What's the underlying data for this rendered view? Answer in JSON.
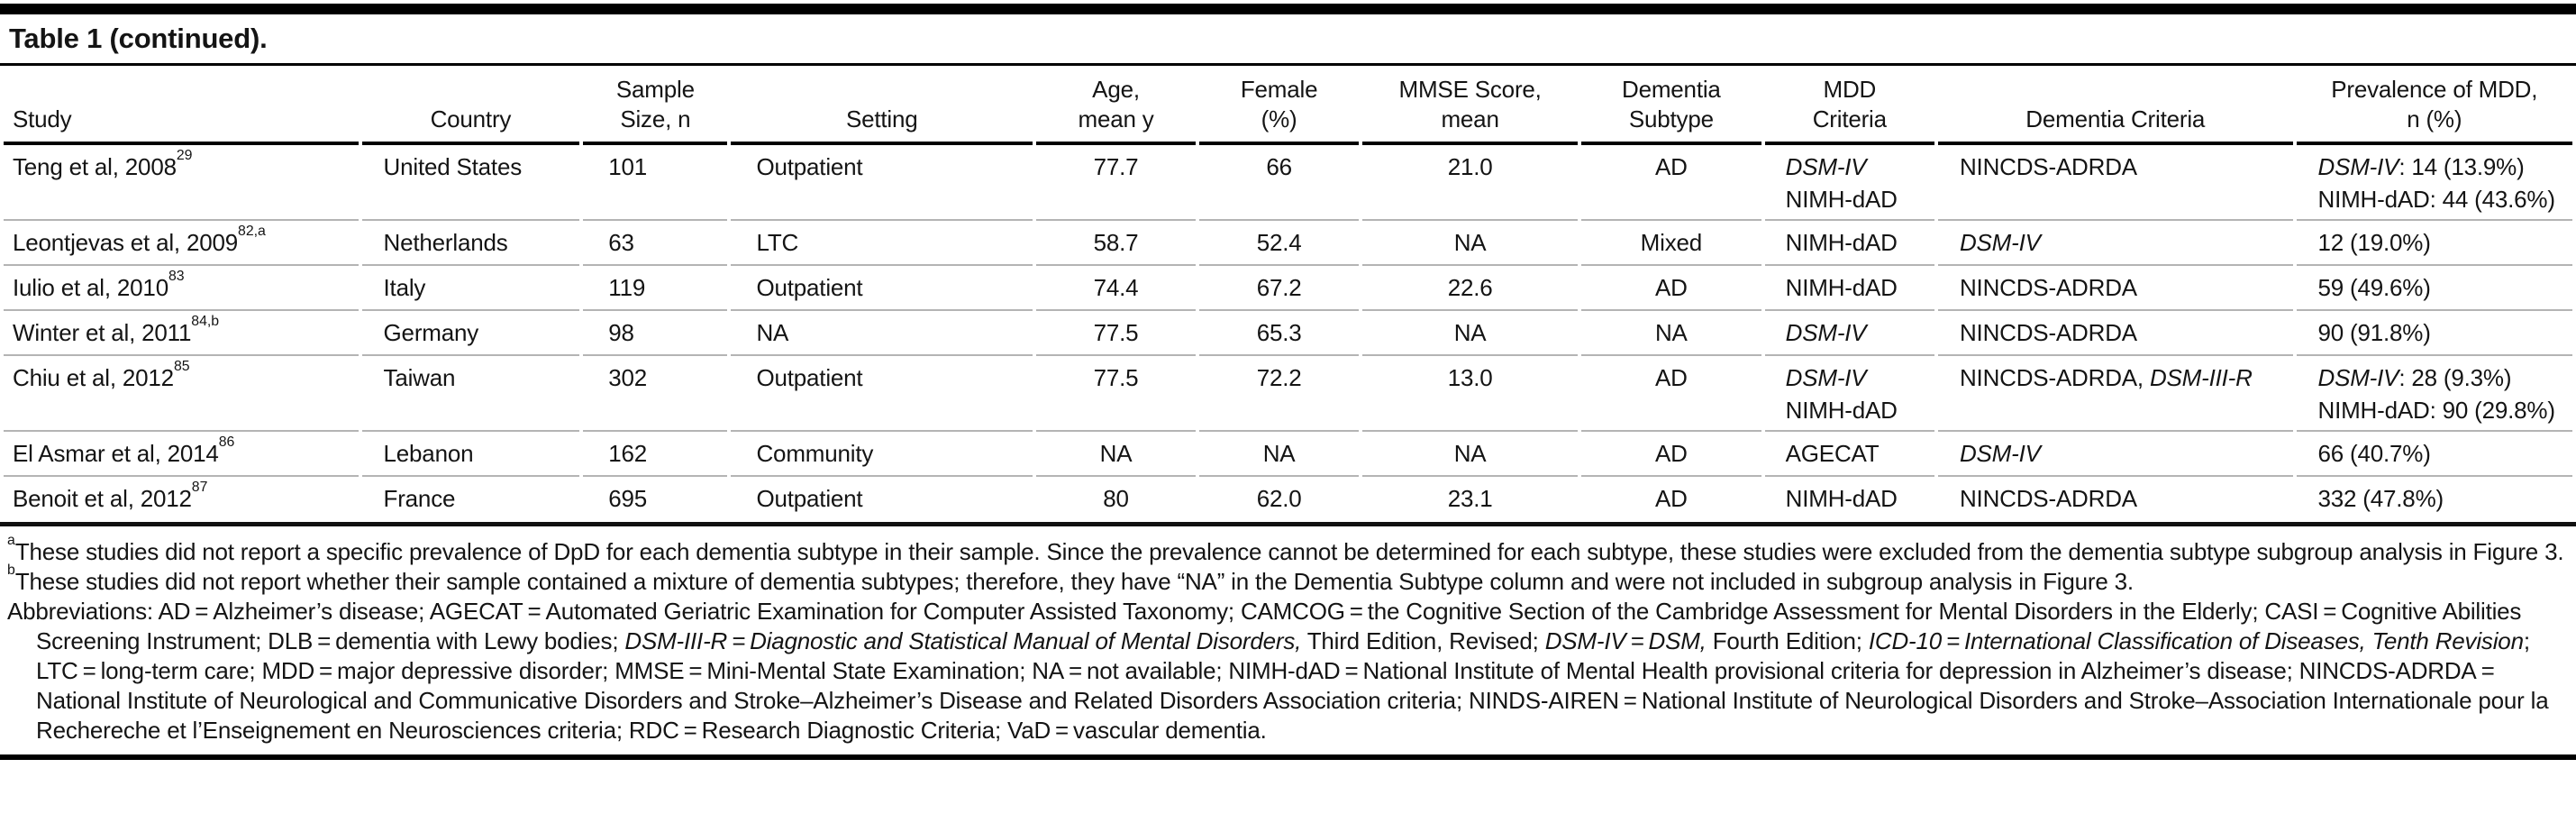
{
  "title": "Table 1 (continued).",
  "colors": {
    "rule_black": "#000000",
    "separator_gray": "#b4b4b4",
    "text": "#141414",
    "background": "#ffffff"
  },
  "table": {
    "columns": [
      {
        "id": "study",
        "header": [
          "Study"
        ],
        "width": 14.0,
        "align": "left",
        "header_align": "left",
        "pad": 10
      },
      {
        "id": "country",
        "header": [
          "Country"
        ],
        "width": 8.6,
        "align": "left",
        "header_align": "center",
        "pad": 24
      },
      {
        "id": "sample",
        "header": [
          "Sample",
          "Size, n"
        ],
        "width": 5.7,
        "align": "left",
        "header_align": "center",
        "pad": 28
      },
      {
        "id": "setting",
        "header": [
          "Setting"
        ],
        "width": 11.9,
        "align": "left",
        "header_align": "center",
        "pad": 28
      },
      {
        "id": "age",
        "header": [
          "Age,",
          "mean y"
        ],
        "width": 6.3,
        "align": "center",
        "header_align": "center",
        "pad": 0
      },
      {
        "id": "female",
        "header": [
          "Female",
          "(%)"
        ],
        "width": 6.3,
        "align": "center",
        "header_align": "center",
        "pad": 0
      },
      {
        "id": "mmse",
        "header": [
          "MMSE Score,",
          "mean"
        ],
        "width": 8.5,
        "align": "center",
        "header_align": "center",
        "pad": 0
      },
      {
        "id": "subtype",
        "header": [
          "Dementia",
          "Subtype"
        ],
        "width": 7.1,
        "align": "center",
        "header_align": "center",
        "pad": 0
      },
      {
        "id": "mdd",
        "header": [
          "MDD",
          "Criteria"
        ],
        "width": 6.7,
        "align": "left",
        "header_align": "center",
        "pad": 23
      },
      {
        "id": "dementia_criteria",
        "header": [
          "Dementia Criteria"
        ],
        "width": 14.0,
        "align": "left",
        "header_align": "center",
        "pad": 24
      },
      {
        "id": "prevalence",
        "header": [
          "Prevalence of MDD,",
          "n (%)"
        ],
        "width": 10.9,
        "align": "left",
        "header_align": "center",
        "pad": 24
      }
    ],
    "rows": [
      {
        "name": "teng-2008",
        "tall": true,
        "cells": {
          "study": [
            [
              {
                "t": "Teng et al, 2008"
              },
              {
                "t": "29",
                "sup": true
              }
            ]
          ],
          "country": [
            [
              "United States"
            ]
          ],
          "sample": [
            [
              "101"
            ]
          ],
          "setting": [
            [
              "Outpatient"
            ]
          ],
          "age": [
            [
              "77.7"
            ]
          ],
          "female": [
            [
              "66"
            ]
          ],
          "mmse": [
            [
              "21.0"
            ]
          ],
          "subtype": [
            [
              "AD"
            ]
          ],
          "mdd": [
            [
              {
                "t": "DSM-IV",
                "i": true
              }
            ],
            [
              "NIMH-dAD"
            ]
          ],
          "dementia_criteria": [
            [
              "NINCDS-ADRDA"
            ]
          ],
          "prevalence": [
            [
              {
                "t": "DSM-IV",
                "i": true
              },
              {
                "t": ": 14 (13.9%)"
              }
            ],
            [
              "NIMH-dAD: 44 (43.6%)"
            ]
          ]
        }
      },
      {
        "name": "leontjevas-2009",
        "tall": false,
        "cells": {
          "study": [
            [
              {
                "t": "Leontjevas et al, 2009"
              },
              {
                "t": "82,a",
                "sup": true
              }
            ]
          ],
          "country": [
            [
              "Netherlands"
            ]
          ],
          "sample": [
            [
              "63"
            ]
          ],
          "setting": [
            [
              "LTC"
            ]
          ],
          "age": [
            [
              "58.7"
            ]
          ],
          "female": [
            [
              "52.4"
            ]
          ],
          "mmse": [
            [
              "NA"
            ]
          ],
          "subtype": [
            [
              "Mixed"
            ]
          ],
          "mdd": [
            [
              "NIMH-dAD"
            ]
          ],
          "dementia_criteria": [
            [
              {
                "t": "DSM-IV",
                "i": true
              }
            ]
          ],
          "prevalence": [
            [
              "12 (19.0%)"
            ]
          ]
        }
      },
      {
        "name": "iulio-2010",
        "tall": false,
        "cells": {
          "study": [
            [
              {
                "t": "Iulio et al, 2010"
              },
              {
                "t": "83",
                "sup": true
              }
            ]
          ],
          "country": [
            [
              "Italy"
            ]
          ],
          "sample": [
            [
              "119"
            ]
          ],
          "setting": [
            [
              "Outpatient"
            ]
          ],
          "age": [
            [
              "74.4"
            ]
          ],
          "female": [
            [
              "67.2"
            ]
          ],
          "mmse": [
            [
              "22.6"
            ]
          ],
          "subtype": [
            [
              "AD"
            ]
          ],
          "mdd": [
            [
              "NIMH-dAD"
            ]
          ],
          "dementia_criteria": [
            [
              "NINCDS-ADRDA"
            ]
          ],
          "prevalence": [
            [
              "59 (49.6%)"
            ]
          ]
        }
      },
      {
        "name": "winter-2011",
        "tall": false,
        "cells": {
          "study": [
            [
              {
                "t": "Winter et al, 2011"
              },
              {
                "t": "84,b",
                "sup": true
              }
            ]
          ],
          "country": [
            [
              "Germany"
            ]
          ],
          "sample": [
            [
              "98"
            ]
          ],
          "setting": [
            [
              "NA"
            ]
          ],
          "age": [
            [
              "77.5"
            ]
          ],
          "female": [
            [
              "65.3"
            ]
          ],
          "mmse": [
            [
              "NA"
            ]
          ],
          "subtype": [
            [
              "NA"
            ]
          ],
          "mdd": [
            [
              {
                "t": "DSM-IV",
                "i": true
              }
            ]
          ],
          "dementia_criteria": [
            [
              "NINCDS-ADRDA"
            ]
          ],
          "prevalence": [
            [
              "90 (91.8%)"
            ]
          ]
        }
      },
      {
        "name": "chiu-2012",
        "tall": true,
        "cells": {
          "study": [
            [
              {
                "t": "Chiu et al, 2012"
              },
              {
                "t": "85",
                "sup": true
              }
            ]
          ],
          "country": [
            [
              "Taiwan"
            ]
          ],
          "sample": [
            [
              "302"
            ]
          ],
          "setting": [
            [
              "Outpatient"
            ]
          ],
          "age": [
            [
              "77.5"
            ]
          ],
          "female": [
            [
              "72.2"
            ]
          ],
          "mmse": [
            [
              "13.0"
            ]
          ],
          "subtype": [
            [
              "AD"
            ]
          ],
          "mdd": [
            [
              {
                "t": "DSM-IV",
                "i": true
              }
            ],
            [
              "NIMH-dAD"
            ]
          ],
          "dementia_criteria": [
            [
              {
                "t": "NINCDS-ADRDA, "
              },
              {
                "t": "DSM-III-R",
                "i": true
              }
            ]
          ],
          "prevalence": [
            [
              {
                "t": "DSM-IV",
                "i": true
              },
              {
                "t": ": 28 (9.3%)"
              }
            ],
            [
              "NIMH-dAD: 90 (29.8%)"
            ]
          ]
        }
      },
      {
        "name": "el-asmar-2014",
        "tall": false,
        "cells": {
          "study": [
            [
              {
                "t": "El Asmar et al, 2014"
              },
              {
                "t": "86",
                "sup": true
              }
            ]
          ],
          "country": [
            [
              "Lebanon"
            ]
          ],
          "sample": [
            [
              "162"
            ]
          ],
          "setting": [
            [
              "Community"
            ]
          ],
          "age": [
            [
              "NA"
            ]
          ],
          "female": [
            [
              "NA"
            ]
          ],
          "mmse": [
            [
              "NA"
            ]
          ],
          "subtype": [
            [
              "AD"
            ]
          ],
          "mdd": [
            [
              "AGECAT"
            ]
          ],
          "dementia_criteria": [
            [
              {
                "t": "DSM-IV",
                "i": true
              }
            ]
          ],
          "prevalence": [
            [
              "66 (40.7%)"
            ]
          ]
        }
      },
      {
        "name": "benoit-2012",
        "tall": false,
        "cells": {
          "study": [
            [
              {
                "t": "Benoit et al, 2012"
              },
              {
                "t": "87",
                "sup": true
              }
            ]
          ],
          "country": [
            [
              "France"
            ]
          ],
          "sample": [
            [
              "695"
            ]
          ],
          "setting": [
            [
              "Outpatient"
            ]
          ],
          "age": [
            [
              "80"
            ]
          ],
          "female": [
            [
              "62.0"
            ]
          ],
          "mmse": [
            [
              "23.1"
            ]
          ],
          "subtype": [
            [
              "AD"
            ]
          ],
          "mdd": [
            [
              "NIMH-dAD"
            ]
          ],
          "dementia_criteria": [
            [
              "NINCDS-ADRDA"
            ]
          ],
          "prevalence": [
            [
              "332 (47.8%)"
            ]
          ]
        }
      }
    ]
  },
  "footnotes": [
    {
      "name": "footnote-a",
      "marker": "a",
      "segments": [
        {
          "t": "These studies did not report a specific prevalence of DpD for each dementia subtype in their sample. Since the prevalence cannot be determined for each subtype, these studies were excluded from the dementia subtype subgroup analysis in Figure 3."
        }
      ]
    },
    {
      "name": "footnote-b",
      "marker": "b",
      "segments": [
        {
          "t": "These studies did not report whether their sample contained a mixture of dementia subtypes; therefore, they have “NA” in the Dementia Subtype column and were not included in subgroup analysis in Figure 3."
        }
      ]
    },
    {
      "name": "abbreviations",
      "marker": null,
      "segments": [
        {
          "t": "Abbreviations: AD = Alzheimer’s disease; AGECAT = Automated Geriatric Examination for Computer Assisted Taxonomy; CAMCOG = the Cognitive Section of the Cambridge Assessment for Mental Disorders in the Elderly; CASI = Cognitive Abilities Screening Instrument; DLB = dementia with Lewy bodies; "
        },
        {
          "t": "DSM-III-R = Diagnostic and Statistical Manual of Mental Disorders,",
          "i": true
        },
        {
          "t": " Third Edition, Revised; "
        },
        {
          "t": "DSM-IV = DSM,",
          "i": true
        },
        {
          "t": " Fourth Edition; "
        },
        {
          "t": "ICD-10 = International Classification of Diseases, Tenth Revision",
          "i": true
        },
        {
          "t": "; LTC = long-term care; MDD = major depressive disorder; MMSE = Mini-Mental State Examination; NA = not available; NIMH-dAD = National Institute of Mental Health provisional criteria for depression in Alzheimer’s disease; NINCDS-ADRDA = National Institute of Neurological and Communicative Disorders and Stroke–Alzheimer’s Disease and Related Disorders Association criteria; NINDS-AIREN = National Institute of Neurological Disorders and Stroke–Association Internationale pour la Rechereche et l’Enseignement en Neurosciences criteria; RDC = Research Diagnostic Criteria; VaD = vascular dementia."
        }
      ]
    }
  ]
}
